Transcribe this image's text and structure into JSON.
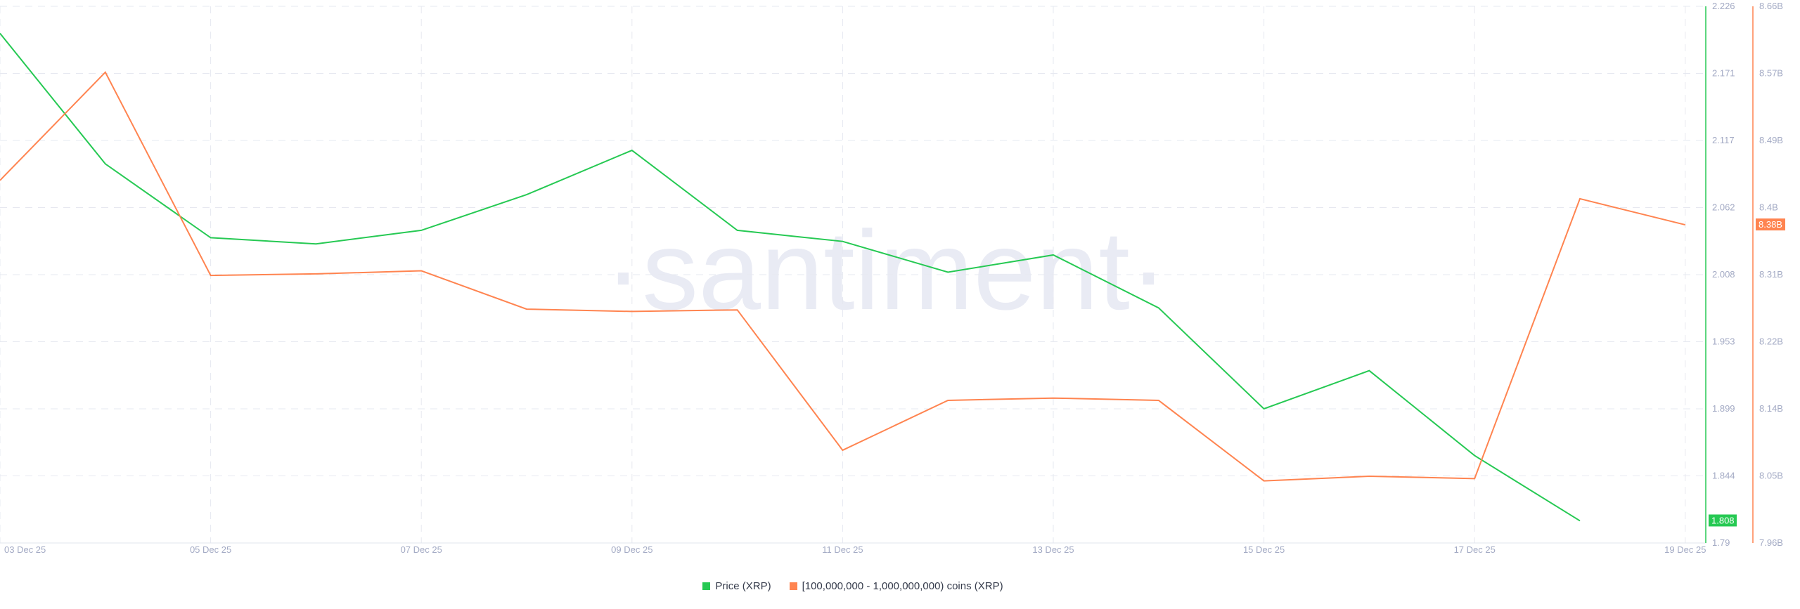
{
  "watermark": "·santiment·",
  "chart_data": {
    "type": "line",
    "x": [
      "03 Dec 25",
      "04 Dec 25",
      "05 Dec 25",
      "06 Dec 25",
      "07 Dec 25",
      "08 Dec 25",
      "09 Dec 25",
      "10 Dec 25",
      "11 Dec 25",
      "12 Dec 25",
      "13 Dec 25",
      "14 Dec 25",
      "15 Dec 25",
      "16 Dec 25",
      "17 Dec 25",
      "18 Dec 25",
      "19 Dec 25"
    ],
    "x_tick_labels": [
      "03 Dec 25",
      "05 Dec 25",
      "07 Dec 25",
      "09 Dec 25",
      "11 Dec 25",
      "13 Dec 25",
      "15 Dec 25",
      "17 Dec 25",
      "19 Dec 25"
    ],
    "series": [
      {
        "name": "Price (XRP)",
        "color": "#26c953",
        "axis": "left-inner",
        "values": [
          2.204,
          2.098,
          2.038,
          2.033,
          2.044,
          2.073,
          2.109,
          2.044,
          2.035,
          2.01,
          2.024,
          1.981,
          1.899,
          1.93,
          1.861,
          1.808,
          null
        ],
        "last_value_label": "1.808"
      },
      {
        "name": "[100,000,000 - 1,000,000,000) coins (XRP)",
        "color": "#ff8450",
        "axis": "right-outer",
        "values": [
          8.433,
          8.574,
          8.309,
          8.311,
          8.315,
          8.265,
          8.262,
          8.264,
          8.081,
          8.146,
          8.149,
          8.146,
          8.041,
          8.047,
          8.044,
          8.409,
          8.375
        ],
        "unit": "B",
        "last_value_label": "8.38B"
      }
    ],
    "y_axes": [
      {
        "range": [
          1.79,
          2.226
        ],
        "tick_labels": [
          "2.226",
          "2.171",
          "2.117",
          "2.062",
          "2.008",
          "1.953",
          "1.899",
          "1.844",
          "1.79"
        ],
        "color": "#26c953"
      },
      {
        "range": [
          7.96,
          8.66
        ],
        "tick_labels": [
          "8.66B",
          "8.57B",
          "8.49B",
          "8.4B",
          "8.31B",
          "8.22B",
          "8.14B",
          "8.05B",
          "7.96B"
        ],
        "color": "#ff8450"
      }
    ],
    "grid": true,
    "legend_position": "bottom-center"
  }
}
